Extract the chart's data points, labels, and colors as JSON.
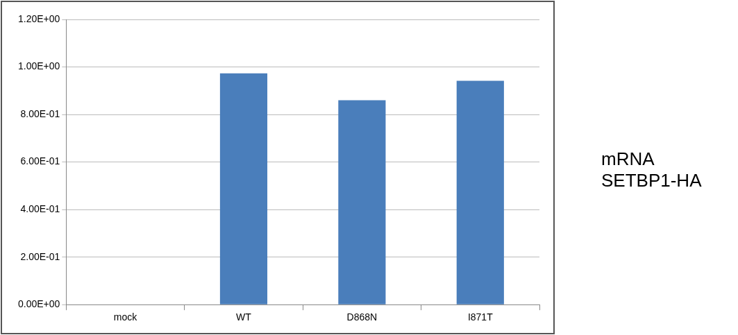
{
  "chart_data": {
    "type": "bar",
    "title": "mRNA SETBP1-HA",
    "categories": [
      "mock",
      "WT",
      "D868N",
      "I871T"
    ],
    "values": [
      0,
      0.973,
      0.86,
      0.942
    ],
    "color": "#4a7ebb",
    "ylim": [
      0,
      1.2
    ],
    "yticks": [
      {
        "value": 0,
        "label": "0.00E+00"
      },
      {
        "value": 0.2,
        "label": "2.00E-01"
      },
      {
        "value": 0.4,
        "label": "4.00E-01"
      },
      {
        "value": 0.6,
        "label": "6.00E-01"
      },
      {
        "value": 0.8,
        "label": "8.00E-01"
      },
      {
        "value": 1,
        "label": "1.00E+00"
      },
      {
        "value": 1.2,
        "label": "1.20E+00"
      }
    ],
    "grid": "y"
  }
}
